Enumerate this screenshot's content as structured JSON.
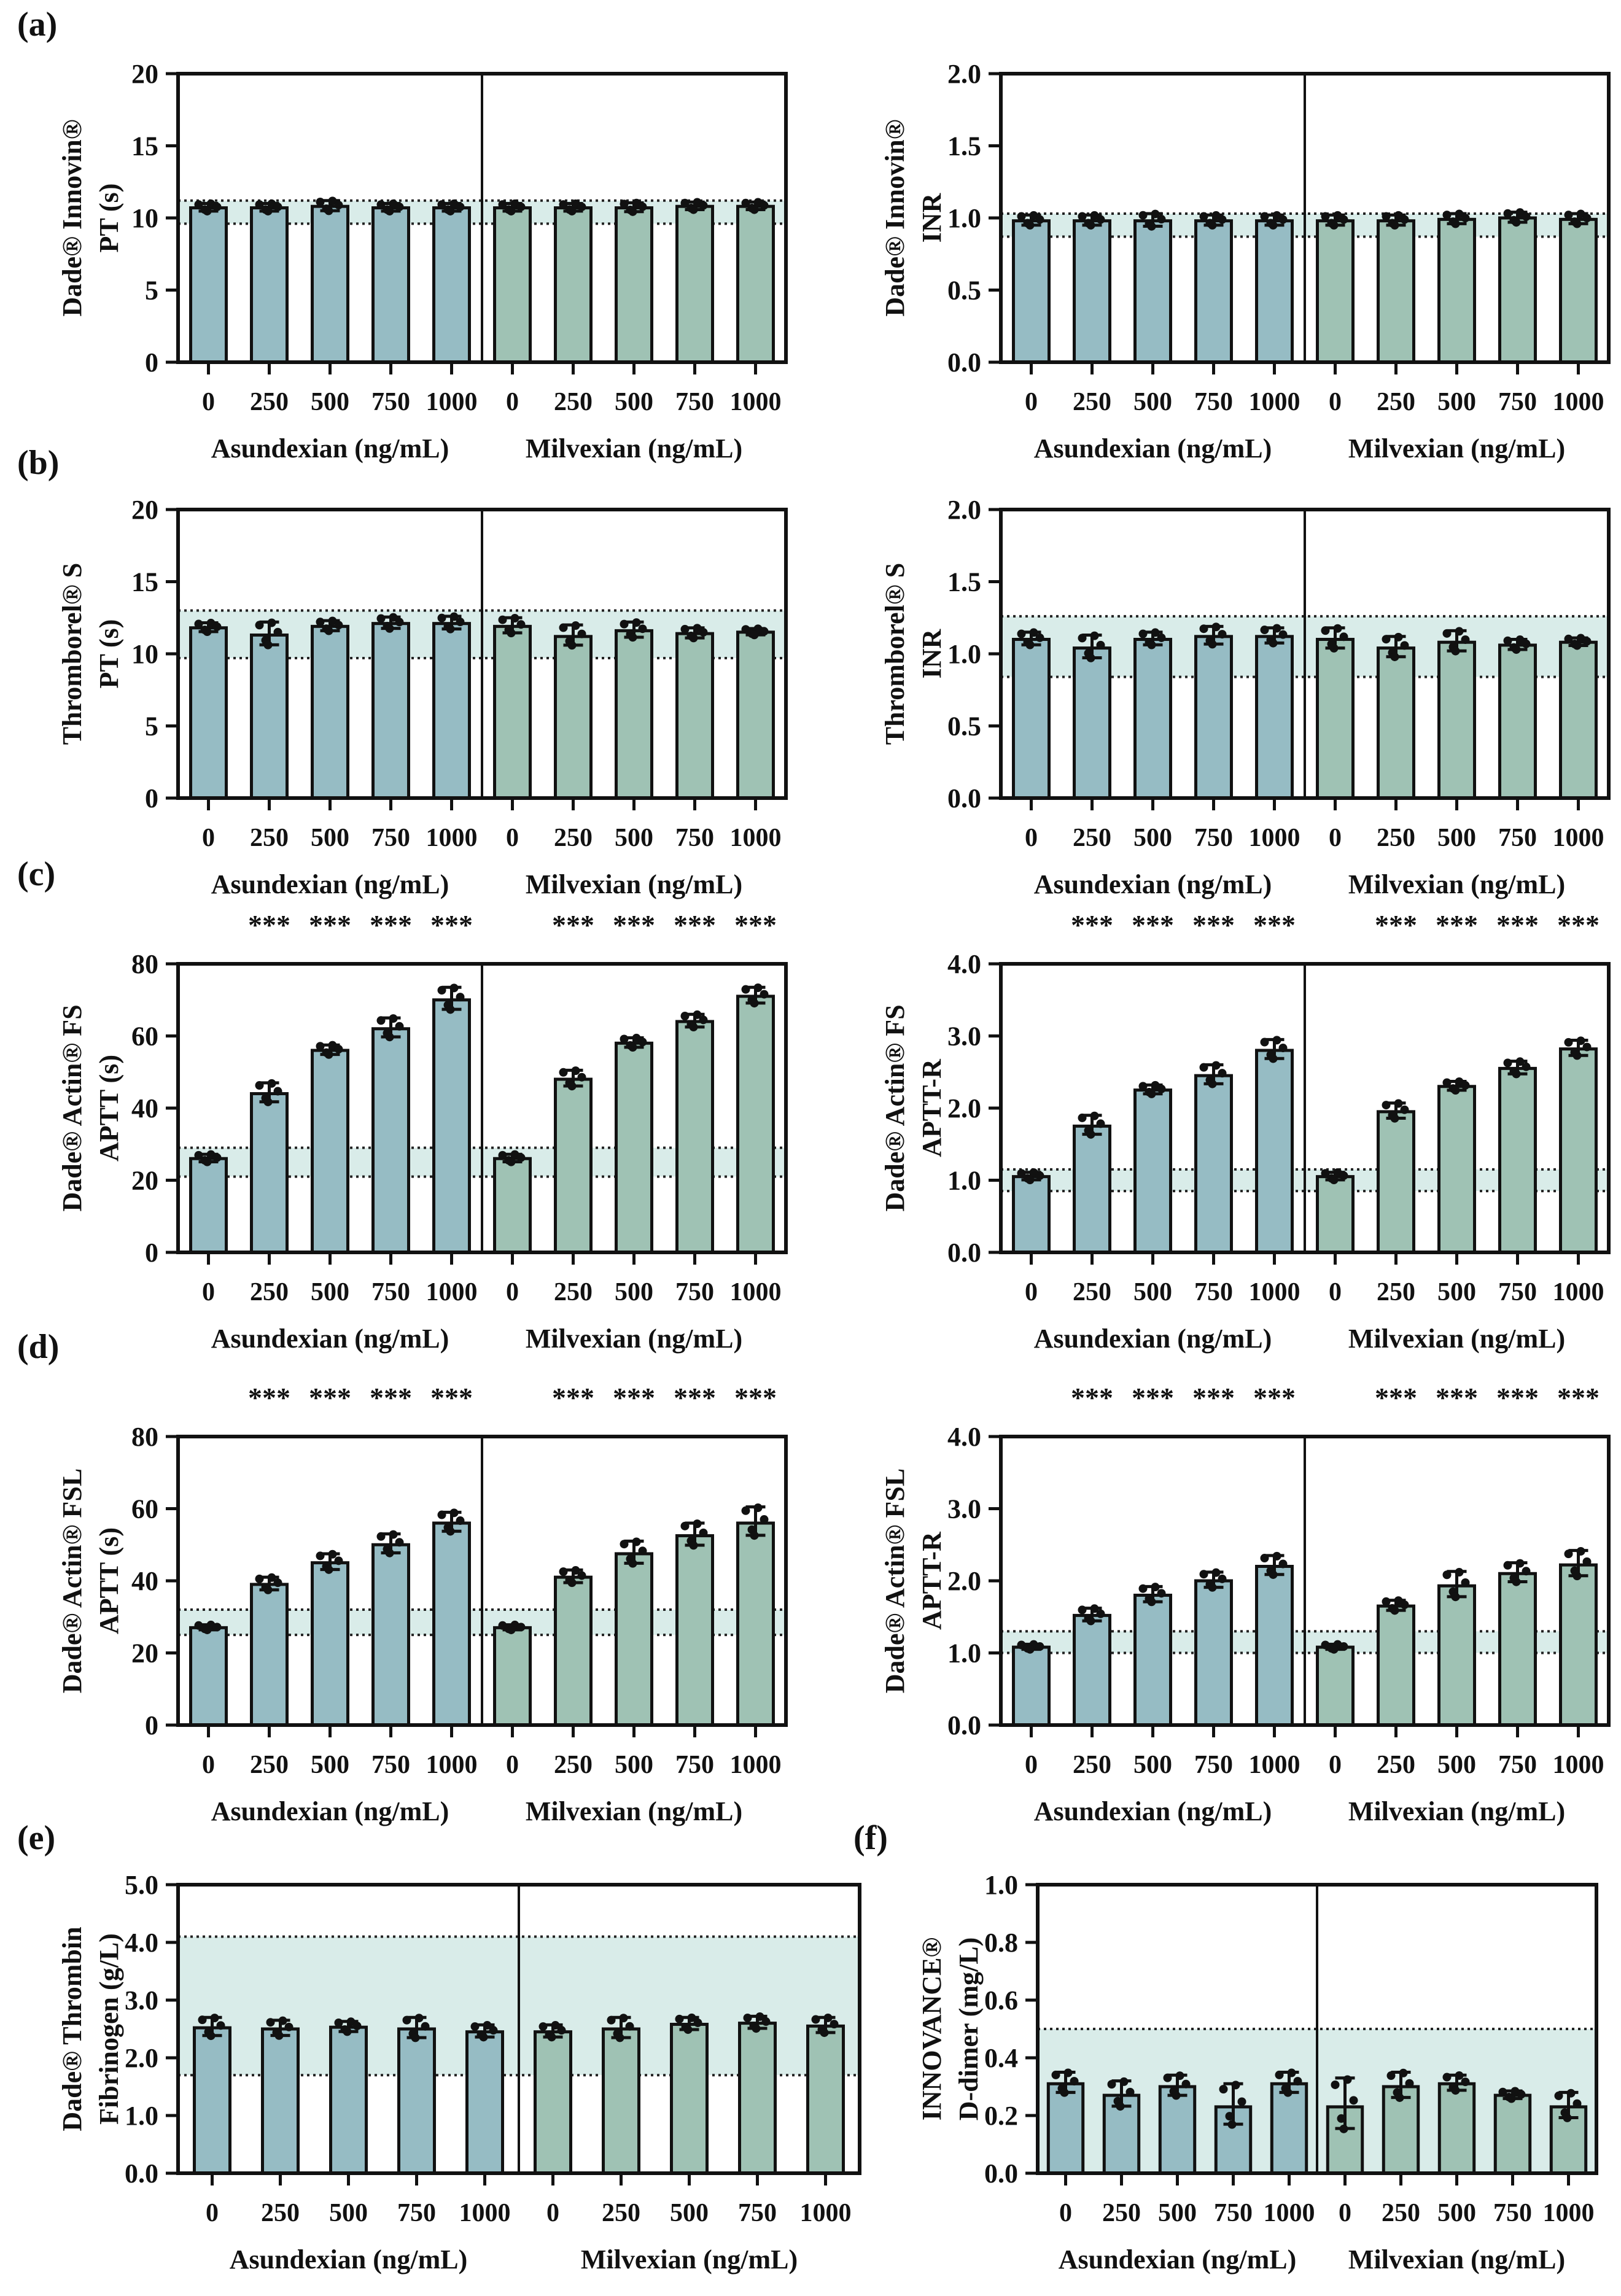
{
  "figure": {
    "panels": [
      {
        "id": "a",
        "letter": "(a)"
      },
      {
        "id": "b",
        "letter": "(b)"
      },
      {
        "id": "c",
        "letter": "(c)"
      },
      {
        "id": "d",
        "letter": "(d)"
      },
      {
        "id": "e",
        "letter": "(e)"
      },
      {
        "id": "f",
        "letter": "(f)"
      }
    ]
  },
  "colors": {
    "asundexian_bar": "#96bcc4",
    "milvexian_bar": "#9fc2b4",
    "band_fill": "#d9ece9",
    "stroke": "#111111"
  },
  "chart_data": [
    {
      "type": "bar",
      "panel": "a",
      "pos": "left",
      "ylabel": [
        "Dade® Innovin®",
        "PT (s)"
      ],
      "ylim": [
        0,
        20
      ],
      "yticks": [
        0,
        5,
        10,
        15,
        20
      ],
      "ytick_labels": [
        "0",
        "5",
        "10",
        "15",
        "20"
      ],
      "band": {
        "lo": 9.6,
        "hi": 11.2,
        "lines": [
          9.6,
          11.2
        ]
      },
      "categories": [
        "0",
        "250",
        "500",
        "750",
        "1000"
      ],
      "group_labels": [
        "Asundexian (ng/mL)",
        "Milvexian (ng/mL)"
      ],
      "grid": false,
      "sig_label": "",
      "stars": [
        false,
        false,
        false,
        false,
        false
      ],
      "series": [
        {
          "name": "Asundexian",
          "color": "#96bcc4",
          "values": [
            10.7,
            10.7,
            10.8,
            10.7,
            10.7
          ],
          "errors": [
            0.3,
            0.3,
            0.4,
            0.3,
            0.3
          ]
        },
        {
          "name": "Milvexian",
          "color": "#9fc2b4",
          "values": [
            10.7,
            10.7,
            10.7,
            10.8,
            10.8
          ],
          "errors": [
            0.3,
            0.3,
            0.35,
            0.3,
            0.3
          ]
        }
      ]
    },
    {
      "type": "bar",
      "panel": "a",
      "pos": "right",
      "ylabel": [
        "Dade® Innovin®",
        "INR"
      ],
      "ylim": [
        0,
        2
      ],
      "yticks": [
        0,
        0.5,
        1,
        1.5,
        2
      ],
      "ytick_labels": [
        "0.0",
        "0.5",
        "1.0",
        "1.5",
        "2.0"
      ],
      "band": {
        "lo": 0.87,
        "hi": 1.03,
        "lines": [
          0.87,
          1.03
        ]
      },
      "categories": [
        "0",
        "250",
        "500",
        "750",
        "1000"
      ],
      "group_labels": [
        "Asundexian (ng/mL)",
        "Milvexian (ng/mL)"
      ],
      "grid": false,
      "sig_label": "",
      "stars": [
        false,
        false,
        false,
        false,
        false
      ],
      "series": [
        {
          "name": "Asundexian",
          "color": "#96bcc4",
          "values": [
            0.98,
            0.98,
            0.98,
            0.98,
            0.98
          ],
          "errors": [
            0.04,
            0.04,
            0.05,
            0.04,
            0.04
          ]
        },
        {
          "name": "Milvexian",
          "color": "#9fc2b4",
          "values": [
            0.98,
            0.98,
            0.99,
            1.0,
            0.99
          ],
          "errors": [
            0.04,
            0.04,
            0.04,
            0.04,
            0.04
          ]
        }
      ]
    },
    {
      "type": "bar",
      "panel": "b",
      "pos": "left",
      "ylabel": [
        "Thromborel® S",
        "PT (s)"
      ],
      "ylim": [
        0,
        20
      ],
      "yticks": [
        0,
        5,
        10,
        15,
        20
      ],
      "ytick_labels": [
        "0",
        "5",
        "10",
        "15",
        "20"
      ],
      "band": {
        "lo": 9.7,
        "hi": 13.0,
        "lines": [
          9.7,
          13.0
        ]
      },
      "categories": [
        "0",
        "250",
        "500",
        "750",
        "1000"
      ],
      "group_labels": [
        "Asundexian (ng/mL)",
        "Milvexian (ng/mL)"
      ],
      "grid": false,
      "sig_label": "",
      "stars": [
        false,
        false,
        false,
        false,
        false
      ],
      "series": [
        {
          "name": "Asundexian",
          "color": "#96bcc4",
          "values": [
            11.8,
            11.3,
            11.9,
            12.1,
            12.1
          ],
          "errors": [
            0.35,
            0.9,
            0.4,
            0.45,
            0.5
          ]
        },
        {
          "name": "Milvexian",
          "color": "#9fc2b4",
          "values": [
            11.9,
            11.2,
            11.6,
            11.4,
            11.5
          ],
          "errors": [
            0.6,
            0.8,
            0.6,
            0.4,
            0.25
          ]
        }
      ]
    },
    {
      "type": "bar",
      "panel": "b",
      "pos": "right",
      "ylabel": [
        "Thromborel® S",
        "INR"
      ],
      "ylim": [
        0,
        2
      ],
      "yticks": [
        0,
        0.5,
        1,
        1.5,
        2
      ],
      "ytick_labels": [
        "0.0",
        "0.5",
        "1.0",
        "1.5",
        "2.0"
      ],
      "band": {
        "lo": 0.84,
        "hi": 1.26,
        "lines": [
          0.84,
          1.26
        ]
      },
      "categories": [
        "0",
        "250",
        "500",
        "750",
        "1000"
      ],
      "group_labels": [
        "Asundexian (ng/mL)",
        "Milvexian (ng/mL)"
      ],
      "grid": false,
      "sig_label": "",
      "stars": [
        false,
        false,
        false,
        false,
        false
      ],
      "series": [
        {
          "name": "Asundexian",
          "color": "#96bcc4",
          "values": [
            1.1,
            1.04,
            1.1,
            1.12,
            1.12
          ],
          "errors": [
            0.05,
            0.09,
            0.05,
            0.07,
            0.06
          ]
        },
        {
          "name": "Milvexian",
          "color": "#9fc2b4",
          "values": [
            1.1,
            1.04,
            1.08,
            1.06,
            1.08
          ],
          "errors": [
            0.08,
            0.08,
            0.08,
            0.04,
            0.03
          ]
        }
      ]
    },
    {
      "type": "bar",
      "panel": "c",
      "pos": "left",
      "ylabel": [
        "Dade® Actin® FS",
        "APTT (s)"
      ],
      "ylim": [
        0,
        80
      ],
      "yticks": [
        0,
        20,
        40,
        60,
        80
      ],
      "ytick_labels": [
        "0",
        "20",
        "40",
        "60",
        "80"
      ],
      "band": {
        "lo": 21,
        "hi": 29,
        "lines": [
          21,
          29
        ]
      },
      "categories": [
        "0",
        "250",
        "500",
        "750",
        "1000"
      ],
      "group_labels": [
        "Asundexian (ng/mL)",
        "Milvexian (ng/mL)"
      ],
      "grid": false,
      "sig_label": "***",
      "stars": [
        false,
        true,
        true,
        true,
        true
      ],
      "series": [
        {
          "name": "Asundexian",
          "color": "#96bcc4",
          "values": [
            26,
            44,
            56,
            62,
            70
          ],
          "errors": [
            1.2,
            3,
            1.5,
            3,
            3.5
          ]
        },
        {
          "name": "Milvexian",
          "color": "#9fc2b4",
          "values": [
            26,
            48,
            58,
            64,
            71
          ],
          "errors": [
            1.2,
            2.5,
            1.5,
            2,
            2.5
          ]
        }
      ]
    },
    {
      "type": "bar",
      "panel": "c",
      "pos": "right",
      "ylabel": [
        "Dade® Actin® FS",
        "APTT-R"
      ],
      "ylim": [
        0,
        4
      ],
      "yticks": [
        0,
        1,
        2,
        3,
        4
      ],
      "ytick_labels": [
        "0.0",
        "1.0",
        "2.0",
        "3.0",
        "4.0"
      ],
      "band": {
        "lo": 0.85,
        "hi": 1.15,
        "lines": [
          0.85,
          1.15
        ]
      },
      "categories": [
        "0",
        "250",
        "500",
        "750",
        "1000"
      ],
      "group_labels": [
        "Asundexian (ng/mL)",
        "Milvexian (ng/mL)"
      ],
      "grid": false,
      "sig_label": "***",
      "stars": [
        false,
        true,
        true,
        true,
        true
      ],
      "series": [
        {
          "name": "Asundexian",
          "color": "#96bcc4",
          "values": [
            1.05,
            1.75,
            2.25,
            2.45,
            2.8
          ],
          "errors": [
            0.06,
            0.15,
            0.07,
            0.15,
            0.15
          ]
        },
        {
          "name": "Milvexian",
          "color": "#9fc2b4",
          "values": [
            1.05,
            1.95,
            2.3,
            2.55,
            2.82
          ],
          "errors": [
            0.06,
            0.12,
            0.07,
            0.1,
            0.12
          ]
        }
      ]
    },
    {
      "type": "bar",
      "panel": "d",
      "pos": "left",
      "ylabel": [
        "Dade® Actin® FSL",
        "APTT (s)"
      ],
      "ylim": [
        0,
        80
      ],
      "yticks": [
        0,
        20,
        40,
        60,
        80
      ],
      "ytick_labels": [
        "0",
        "20",
        "40",
        "60",
        "80"
      ],
      "band": {
        "lo": 25,
        "hi": 32,
        "lines": [
          25,
          32
        ]
      },
      "categories": [
        "0",
        "250",
        "500",
        "750",
        "1000"
      ],
      "group_labels": [
        "Asundexian (ng/mL)",
        "Milvexian (ng/mL)"
      ],
      "grid": false,
      "sig_label": "***",
      "stars": [
        false,
        true,
        true,
        true,
        true
      ],
      "series": [
        {
          "name": "Asundexian",
          "color": "#96bcc4",
          "values": [
            27,
            39,
            45,
            50,
            56
          ],
          "errors": [
            0.8,
            2,
            2.5,
            3,
            3
          ]
        },
        {
          "name": "Milvexian",
          "color": "#9fc2b4",
          "values": [
            27,
            41,
            47.5,
            52.5,
            56
          ],
          "errors": [
            0.8,
            2,
            3.5,
            3.5,
            4.5
          ]
        }
      ]
    },
    {
      "type": "bar",
      "panel": "d",
      "pos": "right",
      "ylabel": [
        "Dade® Actin® FSL",
        "APTT-R"
      ],
      "ylim": [
        0,
        4
      ],
      "yticks": [
        0,
        1,
        2,
        3,
        4
      ],
      "ytick_labels": [
        "0.0",
        "1.0",
        "2.0",
        "3.0",
        "4.0"
      ],
      "band": {
        "lo": 1.0,
        "hi": 1.3,
        "lines": [
          1.0,
          1.3
        ]
      },
      "categories": [
        "0",
        "250",
        "500",
        "750",
        "1000"
      ],
      "group_labels": [
        "Asundexian (ng/mL)",
        "Milvexian (ng/mL)"
      ],
      "grid": false,
      "sig_label": "***",
      "stars": [
        false,
        true,
        true,
        true,
        true
      ],
      "series": [
        {
          "name": "Asundexian",
          "color": "#96bcc4",
          "values": [
            1.08,
            1.52,
            1.8,
            2.0,
            2.2
          ],
          "errors": [
            0.04,
            0.1,
            0.12,
            0.12,
            0.15
          ]
        },
        {
          "name": "Milvexian",
          "color": "#9fc2b4",
          "values": [
            1.08,
            1.65,
            1.93,
            2.1,
            2.22
          ],
          "errors": [
            0.04,
            0.08,
            0.2,
            0.15,
            0.2
          ]
        }
      ]
    },
    {
      "type": "bar",
      "panel": "e",
      "pos": "left",
      "ylabel": [
        "Dade® Thrombin",
        "Fibrinogen (g/L)"
      ],
      "ylim": [
        0,
        5
      ],
      "yticks": [
        0,
        1,
        2,
        3,
        4,
        5
      ],
      "ytick_labels": [
        "0.0",
        "1.0",
        "2.0",
        "3.0",
        "4.0",
        "5.0"
      ],
      "band": {
        "lo": 1.7,
        "hi": 4.1,
        "lines": [
          1.7,
          4.1
        ]
      },
      "categories": [
        "0",
        "250",
        "500",
        "750",
        "1000"
      ],
      "group_labels": [
        "Asundexian (ng/mL)",
        "Milvexian (ng/mL)"
      ],
      "grid": false,
      "sig_label": "",
      "stars": [
        false,
        false,
        false,
        false,
        false
      ],
      "series": [
        {
          "name": "Asundexian",
          "color": "#96bcc4",
          "values": [
            2.52,
            2.5,
            2.53,
            2.5,
            2.45
          ],
          "errors": [
            0.18,
            0.15,
            0.1,
            0.2,
            0.12
          ]
        },
        {
          "name": "Milvexian",
          "color": "#9fc2b4",
          "values": [
            2.45,
            2.5,
            2.58,
            2.6,
            2.55
          ],
          "errors": [
            0.12,
            0.2,
            0.12,
            0.12,
            0.15
          ]
        }
      ]
    },
    {
      "type": "bar",
      "panel": "f",
      "pos": "right",
      "ylabel": [
        "INNOVANCE®",
        "D-dimer (mg/L)"
      ],
      "ylim": [
        0,
        1
      ],
      "yticks": [
        0,
        0.2,
        0.4,
        0.6,
        0.8,
        1
      ],
      "ytick_labels": [
        "0.0",
        "0.2",
        "0.4",
        "0.6",
        "0.8",
        "1.0"
      ],
      "band": {
        "lo": 0,
        "hi": 0.5,
        "lines": [
          0.5
        ]
      },
      "categories": [
        "0",
        "250",
        "500",
        "750",
        "1000"
      ],
      "group_labels": [
        "Asundexian (ng/mL)",
        "Milvexian (ng/mL)"
      ],
      "grid": false,
      "sig_label": "",
      "stars": [
        false,
        false,
        false,
        false,
        false
      ],
      "series": [
        {
          "name": "Asundexian",
          "color": "#96bcc4",
          "values": [
            0.31,
            0.27,
            0.3,
            0.23,
            0.31
          ],
          "errors": [
            0.04,
            0.05,
            0.04,
            0.08,
            0.04
          ]
        },
        {
          "name": "Milvexian",
          "color": "#9fc2b4",
          "values": [
            0.23,
            0.3,
            0.31,
            0.27,
            0.23
          ],
          "errors": [
            0.1,
            0.05,
            0.03,
            0.015,
            0.05
          ]
        }
      ]
    }
  ]
}
